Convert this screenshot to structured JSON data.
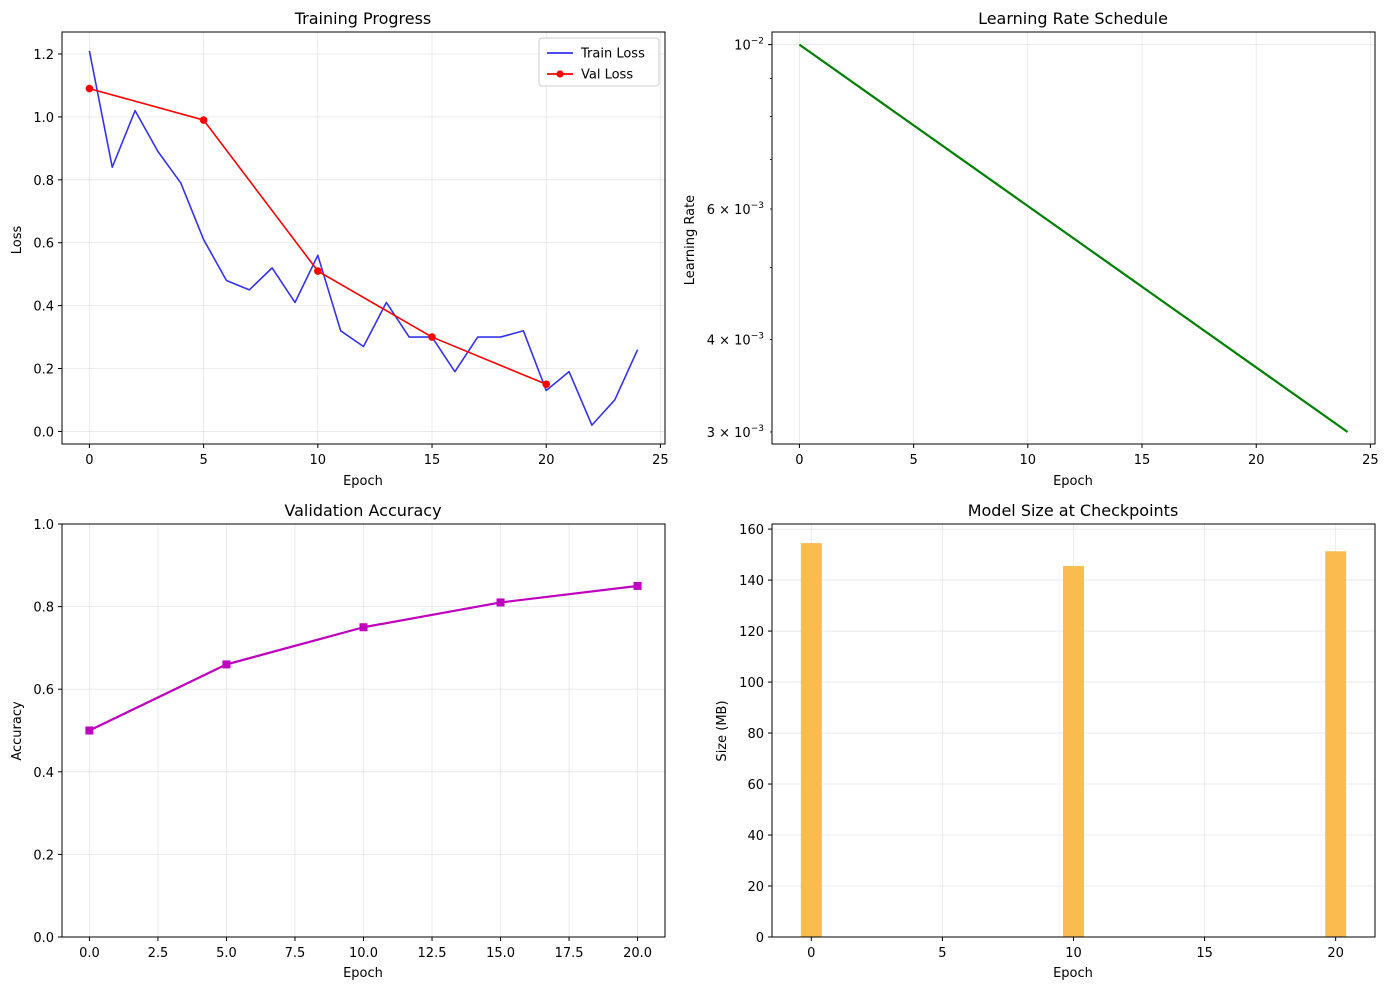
{
  "chart_data": [
    {
      "type": "line",
      "title": "Training Progress",
      "xlabel": "Epoch",
      "ylabel": "Loss",
      "xlim": [
        -1.2,
        25.2
      ],
      "ylim": [
        -0.04,
        1.27
      ],
      "xticks": [
        0,
        5,
        10,
        15,
        20,
        25
      ],
      "xtick_labels": [
        "0",
        "5",
        "10",
        "15",
        "20",
        "25"
      ],
      "yticks": [
        0.0,
        0.2,
        0.4,
        0.6,
        0.8,
        1.0,
        1.2
      ],
      "ytick_labels": [
        "0.0",
        "0.2",
        "0.4",
        "0.6",
        "0.8",
        "1.0",
        "1.2"
      ],
      "grid": true,
      "legend": "top-right",
      "series": [
        {
          "name": "Train Loss",
          "color": "#3333ee",
          "marker": "none",
          "x": [
            0,
            1,
            2,
            3,
            4,
            5,
            6,
            7,
            8,
            9,
            10,
            11,
            12,
            13,
            14,
            15,
            16,
            17,
            18,
            19,
            20,
            21,
            22,
            23,
            24
          ],
          "y": [
            1.21,
            0.84,
            1.02,
            0.89,
            0.79,
            0.61,
            0.48,
            0.45,
            0.52,
            0.41,
            0.56,
            0.32,
            0.27,
            0.41,
            0.3,
            0.3,
            0.19,
            0.3,
            0.3,
            0.32,
            0.13,
            0.19,
            0.02,
            0.1,
            0.26
          ]
        },
        {
          "name": "Val Loss",
          "color": "#ff0000",
          "marker": "circle",
          "x": [
            0,
            5,
            10,
            15,
            20
          ],
          "y": [
            1.09,
            0.99,
            0.51,
            0.3,
            0.15
          ]
        }
      ]
    },
    {
      "type": "line",
      "title": "Learning Rate Schedule",
      "xlabel": "Epoch",
      "ylabel": "Learning Rate",
      "yscale": "log",
      "xlim": [
        -1.2,
        25.2
      ],
      "ylim": [
        0.00289,
        0.0104
      ],
      "xticks": [
        0,
        5,
        10,
        15,
        20,
        25
      ],
      "xtick_labels": [
        "0",
        "5",
        "10",
        "15",
        "20",
        "25"
      ],
      "yticks_major": [
        0.01
      ],
      "yticks_minor": [
        0.003,
        0.004,
        0.005,
        0.006,
        0.007,
        0.008,
        0.009
      ],
      "ytick_labels": [
        {
          "value": 0.01,
          "base": "10",
          "exp": "−2"
        },
        {
          "value": 0.006,
          "base": "6 × 10",
          "exp": "−3"
        },
        {
          "value": 0.004,
          "base": "4 × 10",
          "exp": "−3"
        },
        {
          "value": 0.003,
          "base": "3 × 10",
          "exp": "−3"
        }
      ],
      "grid": true,
      "series": [
        {
          "color": "#008000",
          "marker": "none",
          "x": [
            0,
            24
          ],
          "y": [
            0.01,
            0.003
          ]
        }
      ]
    },
    {
      "type": "line",
      "title": "Validation Accuracy",
      "xlabel": "Epoch",
      "ylabel": "Accuracy",
      "xlim": [
        -1.0,
        21.0
      ],
      "ylim": [
        0.0,
        1.0
      ],
      "xticks": [
        0.0,
        2.5,
        5.0,
        7.5,
        10.0,
        12.5,
        15.0,
        17.5,
        20.0
      ],
      "xtick_labels": [
        "0.0",
        "2.5",
        "5.0",
        "7.5",
        "10.0",
        "12.5",
        "15.0",
        "17.5",
        "20.0"
      ],
      "yticks": [
        0.0,
        0.2,
        0.4,
        0.6,
        0.8,
        1.0
      ],
      "ytick_labels": [
        "0.0",
        "0.2",
        "0.4",
        "0.6",
        "0.8",
        "1.0"
      ],
      "grid": true,
      "series": [
        {
          "color": "#bf00bf",
          "marker": "square",
          "x": [
            0,
            5,
            10,
            15,
            20
          ],
          "y": [
            0.5,
            0.66,
            0.75,
            0.81,
            0.85
          ]
        }
      ]
    },
    {
      "type": "bar",
      "title": "Model Size at Checkpoints",
      "xlabel": "Epoch",
      "ylabel": "Size (MB)",
      "xlim": [
        -1.5,
        21.5
      ],
      "ylim": [
        0,
        162
      ],
      "bar_width": 0.8,
      "xticks": [
        0,
        5,
        10,
        15,
        20
      ],
      "xtick_labels": [
        "0",
        "5",
        "10",
        "15",
        "20"
      ],
      "yticks": [
        0,
        20,
        40,
        60,
        80,
        100,
        120,
        140,
        160
      ],
      "ytick_labels": [
        "0",
        "20",
        "40",
        "60",
        "80",
        "100",
        "120",
        "140",
        "160"
      ],
      "grid": true,
      "color": "#fbbc4f",
      "x": [
        0,
        10,
        20
      ],
      "values": [
        154.5,
        145.5,
        151.3
      ]
    }
  ]
}
